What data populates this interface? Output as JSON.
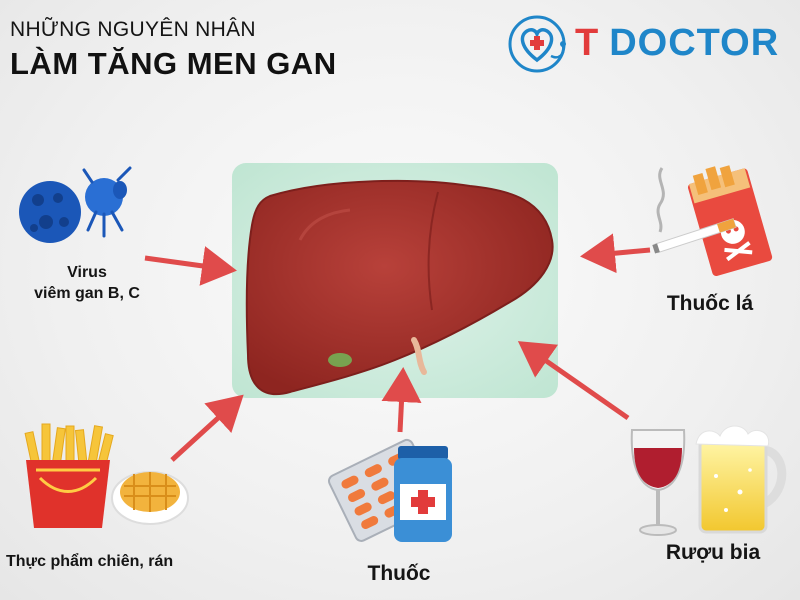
{
  "title": {
    "line1": "NHỮNG NGUYÊN NHÂN",
    "line2": "LÀM TĂNG MEN GAN"
  },
  "logo": {
    "brand_t": "T",
    "brand_name": "DOCTOR"
  },
  "causes": {
    "virus_line1": "Virus",
    "virus_line2": "viêm gan B, C",
    "smoking": "Thuốc lá",
    "fried_food": "Thực phẩm chiên, rán",
    "medicine": "Thuốc",
    "alcohol": "Rượu bia"
  },
  "colors": {
    "liver": "#a8302a",
    "liver_shadow": "#7d1f1c",
    "arrow": "#e04b4b",
    "panel": "#c9eadc",
    "logo_blue": "#1f86c9",
    "logo_red": "#e23b3b",
    "virus": "#1b57b8"
  }
}
